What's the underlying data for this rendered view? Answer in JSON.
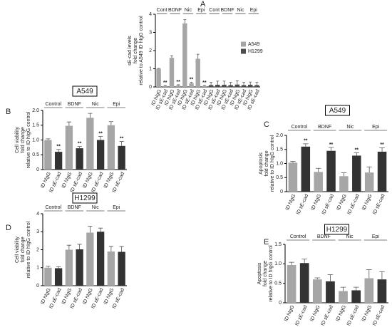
{
  "chart_data": [
    {
      "type": "bar",
      "panel": "A",
      "ylabel": [
        "sE-cad levels",
        "fold change",
        "relative to A549 ID hIgG control"
      ],
      "categories": [
        "ID hIgG",
        "ID sE-cad",
        "ID hIgG",
        "ID sE-cad",
        "ID hIgG",
        "ID sE-cad",
        "ID hIgG",
        "ID sE-cad",
        "ID hIgG",
        "ID sE-cad",
        "ID hIgG",
        "ID sE-cad",
        "ID hIgG",
        "ID sE-cad",
        "ID hIgG",
        "ID sE-cad"
      ],
      "groups": [
        "Cont",
        "BDNF",
        "Nic",
        "Epi",
        "Cont",
        "BDNF",
        "Nic",
        "Epi"
      ],
      "ylim": [
        0,
        4
      ],
      "yticks": [
        0,
        1,
        2,
        3,
        4
      ],
      "series": [
        {
          "name": "A549",
          "color": "#a6a6a6",
          "values": [
            1.0,
            0.05,
            1.6,
            0.08,
            3.5,
            0.2,
            1.55,
            0.05,
            null,
            null,
            null,
            null,
            null,
            null,
            null,
            null
          ],
          "errors": [
            0.02,
            0.03,
            0.12,
            0.04,
            0.2,
            0.05,
            0.25,
            0.03,
            null,
            null,
            null,
            null,
            null,
            null,
            null,
            null
          ],
          "annotations": [
            null,
            "**",
            null,
            "**",
            null,
            "**",
            null,
            "**",
            null,
            null,
            null,
            null,
            null,
            null,
            null,
            null
          ]
        },
        {
          "name": "H1299",
          "color": "#4d4d4d",
          "values": [
            null,
            null,
            null,
            null,
            null,
            null,
            null,
            null,
            0.1,
            0.12,
            0.12,
            0.1,
            0.13,
            0.1,
            0.12,
            0.1
          ],
          "errors": [
            null,
            null,
            null,
            null,
            null,
            null,
            null,
            null,
            0.15,
            0.2,
            0.2,
            0.15,
            0.2,
            0.15,
            0.15,
            0.15
          ],
          "annotations": [
            null,
            null,
            null,
            null,
            null,
            null,
            null,
            null,
            null,
            null,
            null,
            null,
            null,
            null,
            null,
            null
          ]
        }
      ]
    },
    {
      "type": "bar",
      "panel": "B",
      "title": "A549",
      "ylabel": [
        "Cell viability",
        "fold change",
        "relative to ID hIgG control"
      ],
      "categories": [
        "ID hIgG",
        "ID sE-cad",
        "ID hIgG",
        "ID sE-cad",
        "ID hIgG",
        "ID sE-cad",
        "ID hIgG",
        "ID sE-cad"
      ],
      "groups": [
        "Control",
        "BDNF",
        "Nic",
        "Epi"
      ],
      "ylim": [
        0,
        2
      ],
      "yticks": [
        0,
        0.5,
        {
          "value": 1,
          "label": "1.0"
        },
        1.5,
        {
          "value": 2,
          "label": "2.0"
        }
      ],
      "values": [
        1.0,
        0.6,
        1.48,
        0.72,
        1.75,
        1.0,
        1.5,
        0.8
      ],
      "errors": [
        0.04,
        0.08,
        0.13,
        0.06,
        0.15,
        0.12,
        0.12,
        0.15
      ],
      "colors": [
        "#a6a6a6",
        "#333333",
        "#a6a6a6",
        "#333333",
        "#a6a6a6",
        "#333333",
        "#a6a6a6",
        "#333333"
      ],
      "annotations": [
        null,
        "**",
        null,
        "**",
        null,
        "**",
        null,
        "**"
      ]
    },
    {
      "type": "bar",
      "panel": "C",
      "title": "A549",
      "ylabel": [
        "Apoptosis",
        "fold change",
        "relative to ID hIgG control"
      ],
      "categories": [
        "ID hIgG",
        "ID sE-cad",
        "ID hIgG",
        "ID sE-cad",
        "ID hIgG",
        "ID sE-cad",
        "ID hIgG",
        "ID sE-cad"
      ],
      "groups": [
        "Control",
        "BDNF",
        "Nic",
        "Epi"
      ],
      "ylim": [
        0,
        2
      ],
      "yticks": [
        0,
        0.5,
        {
          "value": 1,
          "label": "1.0"
        },
        1.5,
        {
          "value": 2,
          "label": "2.0"
        }
      ],
      "values": [
        1.03,
        1.6,
        0.7,
        1.45,
        0.55,
        1.28,
        0.68,
        1.42
      ],
      "errors": [
        0.05,
        0.1,
        0.13,
        0.12,
        0.12,
        0.1,
        0.2,
        0.14
      ],
      "colors": [
        "#a6a6a6",
        "#333333",
        "#a6a6a6",
        "#333333",
        "#a6a6a6",
        "#333333",
        "#a6a6a6",
        "#333333"
      ],
      "annotations": [
        null,
        "**",
        null,
        "**",
        null,
        "**",
        null,
        "**"
      ]
    },
    {
      "type": "bar",
      "panel": "D",
      "title": "H1299",
      "ylabel": [
        "Cell viability",
        "fold change",
        "relative to ID hIgG control"
      ],
      "categories": [
        "ID hIgG",
        "ID sE-cad",
        "ID hIgG",
        "ID sE-cad",
        "ID hIgG",
        "ID sE-cad",
        "ID hIgG",
        "ID sE-cad"
      ],
      "groups": [
        "Control",
        "BDNF",
        "Nic",
        "Epi"
      ],
      "ylim": [
        0,
        4
      ],
      "yticks": [
        0,
        1,
        2,
        3,
        4
      ],
      "values": [
        1.0,
        0.97,
        2.0,
        2.02,
        2.95,
        3.0,
        1.9,
        1.88
      ],
      "errors": [
        0.08,
        0.08,
        0.25,
        0.28,
        0.35,
        0.2,
        0.28,
        0.3
      ],
      "colors": [
        "#a6a6a6",
        "#333333",
        "#a6a6a6",
        "#333333",
        "#a6a6a6",
        "#333333",
        "#a6a6a6",
        "#333333"
      ],
      "annotations": [
        null,
        null,
        null,
        null,
        null,
        null,
        null,
        null
      ]
    },
    {
      "type": "bar",
      "panel": "E",
      "title": "H1299",
      "ylabel": [
        "Apoptosis",
        "fold change",
        "relative to ID hIgG control"
      ],
      "categories": [
        "ID hIgG",
        "ID sE-cad",
        "ID hIgG",
        "ID sE-cad",
        "ID hIgG",
        "ID sE-cad",
        "ID hIgG",
        "ID sE-cad"
      ],
      "groups": [
        "Control",
        "BDNF",
        "Nic",
        "Epi"
      ],
      "ylim": [
        0,
        1.5
      ],
      "yticks": [
        0,
        0.5,
        {
          "value": 1,
          "label": "1.0"
        },
        1.5
      ],
      "values": [
        0.97,
        1.02,
        0.6,
        0.55,
        0.3,
        0.32,
        0.63,
        0.6
      ],
      "errors": [
        0.07,
        0.1,
        0.04,
        0.17,
        0.1,
        0.08,
        0.22,
        0.2
      ],
      "colors": [
        "#a6a6a6",
        "#333333",
        "#a6a6a6",
        "#333333",
        "#a6a6a6",
        "#333333",
        "#a6a6a6",
        "#333333"
      ],
      "annotations": [
        null,
        null,
        null,
        null,
        null,
        null,
        null,
        null
      ]
    }
  ]
}
